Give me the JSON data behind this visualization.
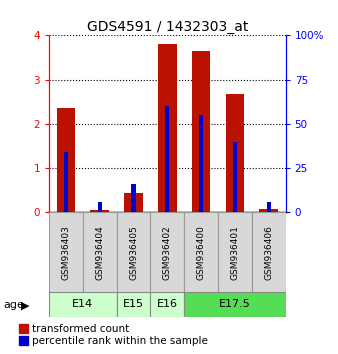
{
  "title": "GDS4591 / 1432303_at",
  "samples": [
    "GSM936403",
    "GSM936404",
    "GSM936405",
    "GSM936402",
    "GSM936400",
    "GSM936401",
    "GSM936406"
  ],
  "transformed_count": [
    2.35,
    0.05,
    0.43,
    3.8,
    3.65,
    2.68,
    0.07
  ],
  "percentile_rank_pct": [
    34,
    6,
    16,
    60,
    55,
    40,
    6
  ],
  "age_groups": [
    {
      "label": "E14",
      "start": 0,
      "end": 2,
      "color": "#ccffcc"
    },
    {
      "label": "E15",
      "start": 2,
      "end": 3,
      "color": "#ccffcc"
    },
    {
      "label": "E16",
      "start": 3,
      "end": 4,
      "color": "#ccffcc"
    },
    {
      "label": "E17.5",
      "start": 4,
      "end": 7,
      "color": "#55dd55"
    }
  ],
  "bar_color_red": "#bb1100",
  "bar_color_blue": "#0000cc",
  "bar_width": 0.55,
  "blue_bar_width": 0.12,
  "ylim_left": [
    0,
    4
  ],
  "ylim_right": [
    0,
    100
  ],
  "yticks_left": [
    0,
    1,
    2,
    3,
    4
  ],
  "yticks_right": [
    0,
    25,
    50,
    75,
    100
  ],
  "background_color": "#ffffff",
  "legend_red_label": "transformed count",
  "legend_blue_label": "percentile rank within the sample",
  "age_label": "age",
  "title_fontsize": 10,
  "tick_fontsize": 7.5,
  "label_fontsize": 6.5,
  "legend_fontsize": 7.5,
  "age_fontsize": 8
}
